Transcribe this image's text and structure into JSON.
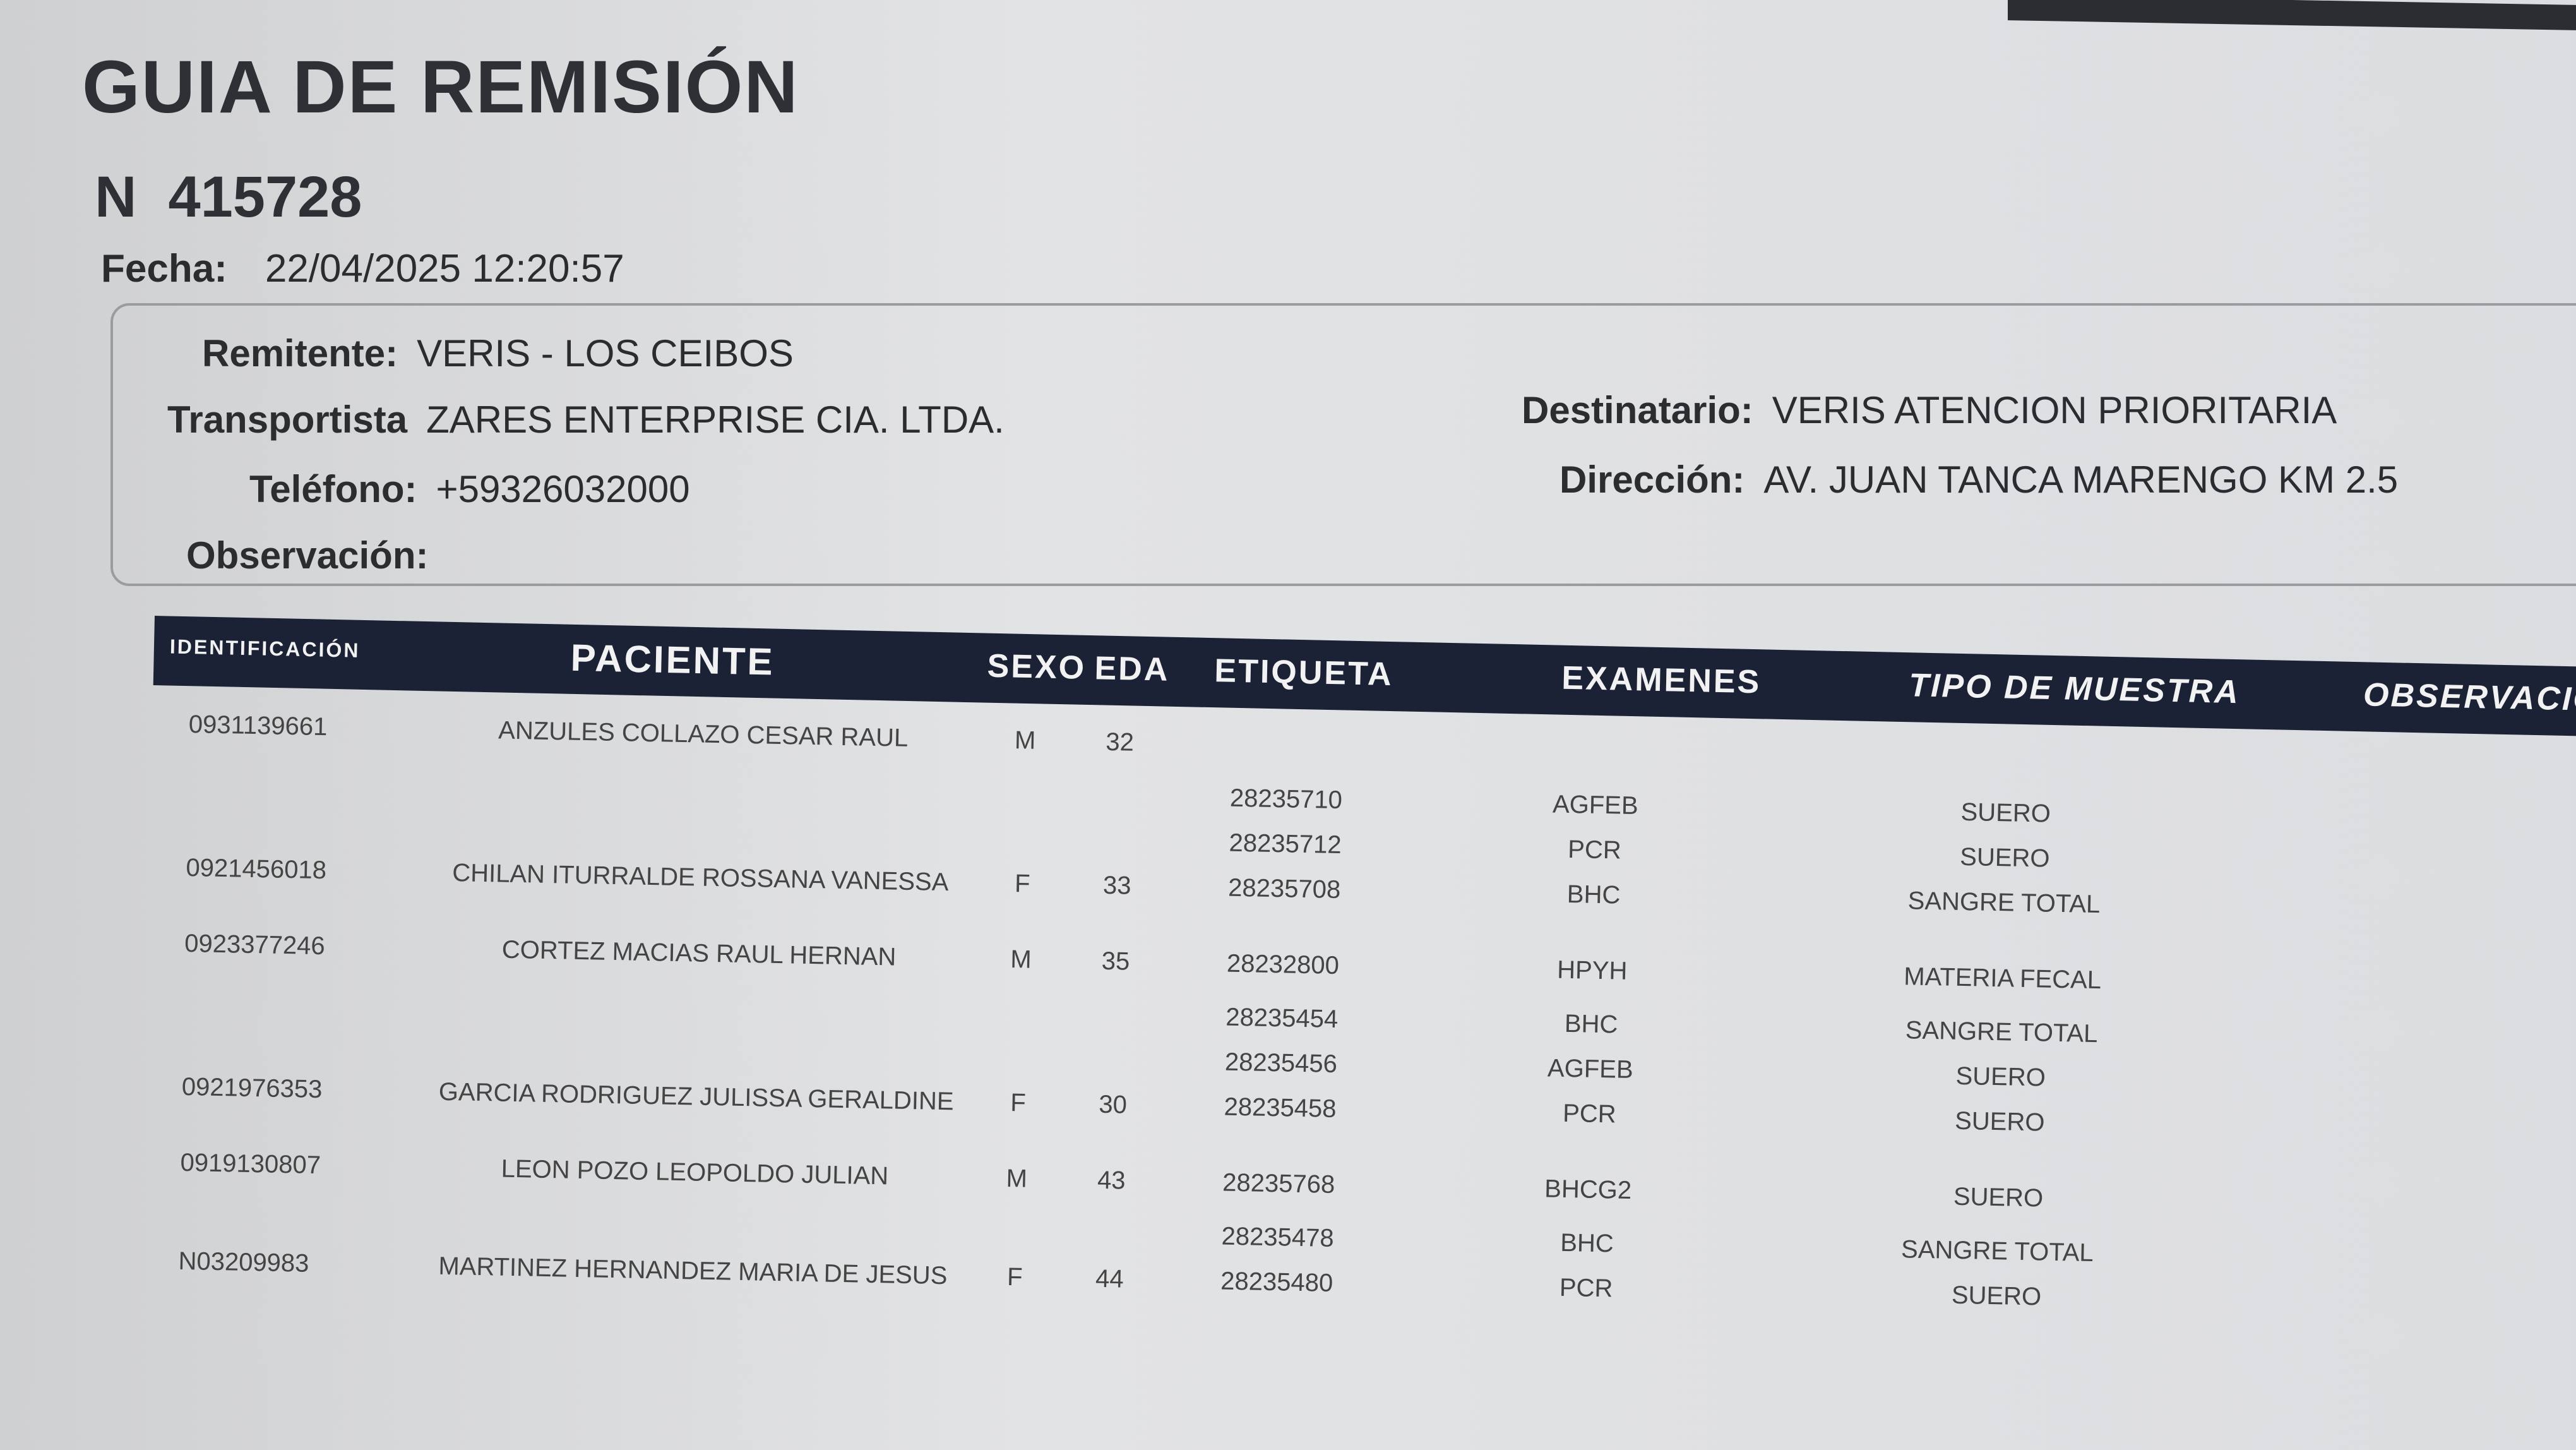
{
  "title": "GUIA DE REMISIÓN",
  "number_label": "N",
  "number": "415728",
  "fecha_label": "Fecha:",
  "fecha": "22/04/2025 12:20:57",
  "remitente_label": "Remitente:",
  "remitente": "VERIS - LOS CEIBOS",
  "transportista_label": "Transportista",
  "transportista": "ZARES ENTERPRISE CIA. LTDA.",
  "telefono_label": "Teléfono:",
  "telefono": "+59326032000",
  "observacion_label": "Observación:",
  "destinatario_label": "Destinatario:",
  "destinatario": "VERIS ATENCION PRIORITARIA",
  "direccion_label": "Dirección:",
  "direccion": "AV. JUAN TANCA MARENGO KM 2.5",
  "columns": [
    "IDENTIFICACIÓN",
    "PACIENTE",
    "SEXO",
    "EDA",
    "ETIQUETA",
    "EXAMENES",
    "TIPO DE MUESTRA",
    "OBSERVACIÓN"
  ],
  "colors": {
    "header_bg": "#1c2236",
    "header_text": "#f2f2f2",
    "background": "#dcdde0"
  },
  "records": [
    {
      "id": "0931139661",
      "name": "ANZULES COLLAZO CESAR RAUL",
      "sex": "M",
      "age": "32",
      "samples": []
    },
    {
      "id": "0921456018",
      "name": "CHILAN ITURRALDE ROSSANA VANESSA",
      "sex": "F",
      "age": "33",
      "samples": [
        {
          "label": "28235710",
          "exam": "AGFEB",
          "type": "SUERO"
        },
        {
          "label": "28235712",
          "exam": "PCR",
          "type": "SUERO"
        },
        {
          "label": "28235708",
          "exam": "BHC",
          "type": "SANGRE TOTAL"
        }
      ]
    },
    {
      "id": "0923377246",
      "name": "CORTEZ MACIAS RAUL HERNAN",
      "sex": "M",
      "age": "35",
      "samples": [
        {
          "label": "28232800",
          "exam": "HPYH",
          "type": "MATERIA FECAL"
        }
      ]
    },
    {
      "id": "0921976353",
      "name": "GARCIA RODRIGUEZ JULISSA GERALDINE",
      "sex": "F",
      "age": "30",
      "samples": [
        {
          "label": "28235454",
          "exam": "BHC",
          "type": "SANGRE TOTAL"
        },
        {
          "label": "28235456",
          "exam": "AGFEB",
          "type": "SUERO"
        },
        {
          "label": "28235458",
          "exam": "PCR",
          "type": "SUERO"
        }
      ]
    },
    {
      "id": "0919130807",
      "name": "LEON POZO LEOPOLDO JULIAN",
      "sex": "M",
      "age": "43",
      "samples": [
        {
          "label": "28235768",
          "exam": "BHCG2",
          "type": "SUERO"
        }
      ]
    },
    {
      "id": "N03209983",
      "name": "MARTINEZ HERNANDEZ MARIA DE JESUS",
      "sex": "F",
      "age": "44",
      "samples": [
        {
          "label": "28235478",
          "exam": "BHC",
          "type": "SANGRE TOTAL"
        },
        {
          "label": "28235480",
          "exam": "PCR",
          "type": "SUERO"
        }
      ]
    }
  ]
}
